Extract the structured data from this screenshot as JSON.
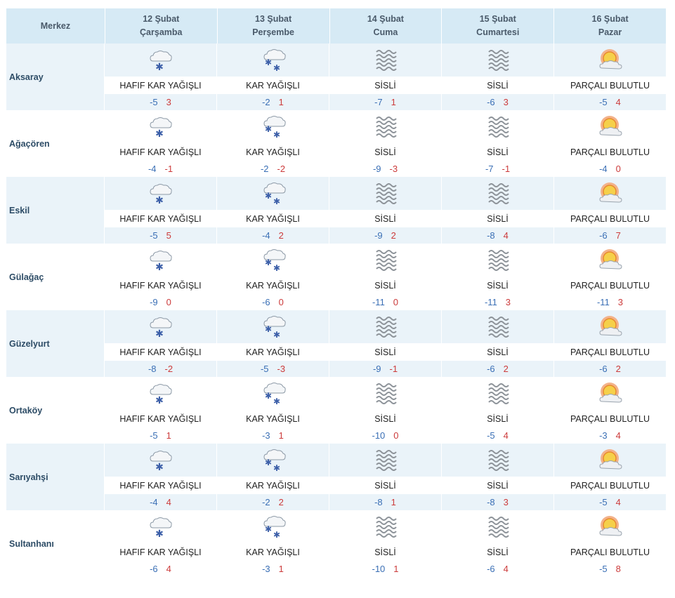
{
  "header": {
    "location_label": "Merkez",
    "days": [
      {
        "date": "12 Şubat",
        "weekday": "Çarşamba"
      },
      {
        "date": "13 Şubat",
        "weekday": "Perşembe"
      },
      {
        "date": "14 Şubat",
        "weekday": "Cuma"
      },
      {
        "date": "15 Şubat",
        "weekday": "Cumartesi"
      },
      {
        "date": "16 Şubat",
        "weekday": "Pazar"
      }
    ]
  },
  "colors": {
    "header_bg": "#d6eaf5",
    "row_shade": "#eaf3f9",
    "min_temp": "#3a6fb5",
    "max_temp": "#cc3b3b",
    "city_text": "#2d4c66"
  },
  "icons": {
    "HAFIF KAR YAĞIŞLI": "light-snow-icon",
    "KAR YAĞIŞLI": "snow-icon",
    "SİSLİ": "fog-icon",
    "PARÇALI BULUTLU": "partly-cloudy-icon"
  },
  "rows": [
    {
      "city": "Aksaray",
      "days": [
        {
          "condition": "HAFIF KAR YAĞIŞLI",
          "min": "-5",
          "max": "3"
        },
        {
          "condition": "KAR YAĞIŞLI",
          "min": "-2",
          "max": "1"
        },
        {
          "condition": "SİSLİ",
          "min": "-7",
          "max": "1"
        },
        {
          "condition": "SİSLİ",
          "min": "-6",
          "max": "3"
        },
        {
          "condition": "PARÇALI BULUTLU",
          "min": "-5",
          "max": "4"
        }
      ]
    },
    {
      "city": "Ağaçören",
      "days": [
        {
          "condition": "HAFIF KAR YAĞIŞLI",
          "min": "-4",
          "max": "-1"
        },
        {
          "condition": "KAR YAĞIŞLI",
          "min": "-2",
          "max": "-2"
        },
        {
          "condition": "SİSLİ",
          "min": "-9",
          "max": "-3"
        },
        {
          "condition": "SİSLİ",
          "min": "-7",
          "max": "-1"
        },
        {
          "condition": "PARÇALI BULUTLU",
          "min": "-4",
          "max": "0"
        }
      ]
    },
    {
      "city": "Eskil",
      "days": [
        {
          "condition": "HAFIF KAR YAĞIŞLI",
          "min": "-5",
          "max": "5"
        },
        {
          "condition": "KAR YAĞIŞLI",
          "min": "-4",
          "max": "2"
        },
        {
          "condition": "SİSLİ",
          "min": "-9",
          "max": "2"
        },
        {
          "condition": "SİSLİ",
          "min": "-8",
          "max": "4"
        },
        {
          "condition": "PARÇALI BULUTLU",
          "min": "-6",
          "max": "7"
        }
      ]
    },
    {
      "city": "Gülağaç",
      "days": [
        {
          "condition": "HAFIF KAR YAĞIŞLI",
          "min": "-9",
          "max": "0"
        },
        {
          "condition": "KAR YAĞIŞLI",
          "min": "-6",
          "max": "0"
        },
        {
          "condition": "SİSLİ",
          "min": "-11",
          "max": "0"
        },
        {
          "condition": "SİSLİ",
          "min": "-11",
          "max": "3"
        },
        {
          "condition": "PARÇALI BULUTLU",
          "min": "-11",
          "max": "3"
        }
      ]
    },
    {
      "city": "Güzelyurt",
      "days": [
        {
          "condition": "HAFIF KAR YAĞIŞLI",
          "min": "-8",
          "max": "-2"
        },
        {
          "condition": "KAR YAĞIŞLI",
          "min": "-5",
          "max": "-3"
        },
        {
          "condition": "SİSLİ",
          "min": "-9",
          "max": "-1"
        },
        {
          "condition": "SİSLİ",
          "min": "-6",
          "max": "2"
        },
        {
          "condition": "PARÇALI BULUTLU",
          "min": "-6",
          "max": "2"
        }
      ]
    },
    {
      "city": "Ortaköy",
      "days": [
        {
          "condition": "HAFIF KAR YAĞIŞLI",
          "min": "-5",
          "max": "1"
        },
        {
          "condition": "KAR YAĞIŞLI",
          "min": "-3",
          "max": "1"
        },
        {
          "condition": "SİSLİ",
          "min": "-10",
          "max": "0"
        },
        {
          "condition": "SİSLİ",
          "min": "-5",
          "max": "4"
        },
        {
          "condition": "PARÇALI BULUTLU",
          "min": "-3",
          "max": "4"
        }
      ]
    },
    {
      "city": "Sarıyahşi",
      "days": [
        {
          "condition": "HAFIF KAR YAĞIŞLI",
          "min": "-4",
          "max": "4"
        },
        {
          "condition": "KAR YAĞIŞLI",
          "min": "-2",
          "max": "2"
        },
        {
          "condition": "SİSLİ",
          "min": "-8",
          "max": "1"
        },
        {
          "condition": "SİSLİ",
          "min": "-8",
          "max": "3"
        },
        {
          "condition": "PARÇALI BULUTLU",
          "min": "-5",
          "max": "4"
        }
      ]
    },
    {
      "city": "Sultanhanı",
      "days": [
        {
          "condition": "HAFIF KAR YAĞIŞLI",
          "min": "-6",
          "max": "4"
        },
        {
          "condition": "KAR YAĞIŞLI",
          "min": "-3",
          "max": "1"
        },
        {
          "condition": "SİSLİ",
          "min": "-10",
          "max": "1"
        },
        {
          "condition": "SİSLİ",
          "min": "-6",
          "max": "4"
        },
        {
          "condition": "PARÇALI BULUTLU",
          "min": "-5",
          "max": "8"
        }
      ]
    }
  ]
}
